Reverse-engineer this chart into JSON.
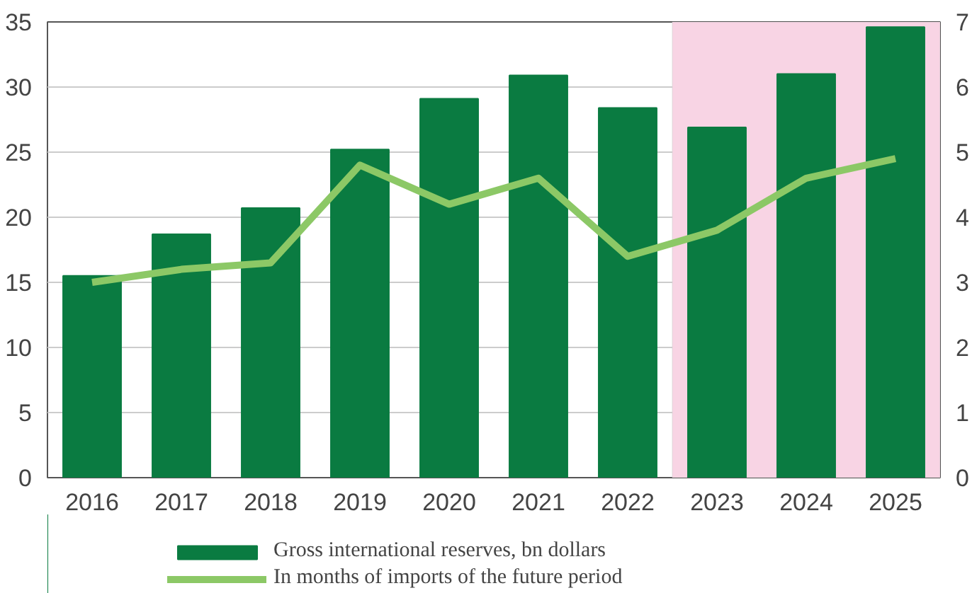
{
  "chart_data": {
    "type": "bar",
    "categories": [
      "2016",
      "2017",
      "2018",
      "2019",
      "2020",
      "2021",
      "2022",
      "2023",
      "2024",
      "2025"
    ],
    "series": [
      {
        "name": "Gross international reserves, bn dollars",
        "color": "#0a7b41",
        "values": [
          15.5,
          18.7,
          20.7,
          25.2,
          29.1,
          30.9,
          28.4,
          26.9,
          31.0,
          34.6
        ]
      },
      {
        "name": "In months of imports of the future period",
        "type": "line",
        "axis": "y2",
        "color": "#8cc866",
        "values": [
          3.0,
          3.2,
          3.3,
          4.8,
          4.2,
          4.6,
          3.4,
          3.8,
          4.6,
          4.9
        ]
      }
    ],
    "ylim": [
      0,
      35
    ],
    "yticks": [
      0,
      5,
      10,
      15,
      20,
      25,
      30,
      35
    ],
    "y2lim": [
      0,
      7
    ],
    "y2ticks": [
      0,
      1,
      2,
      3,
      4,
      5,
      6,
      7
    ],
    "bands": [
      {
        "axis": "x",
        "from": "2023",
        "to": "2025",
        "color": "#f8d4e4"
      }
    ],
    "grid": "y",
    "legend": "bottom"
  }
}
